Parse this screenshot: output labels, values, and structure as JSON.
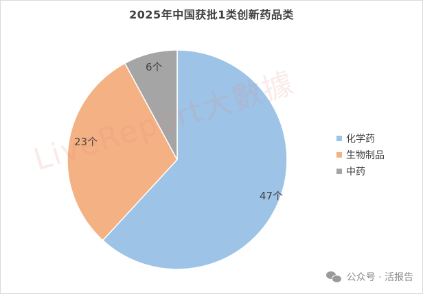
{
  "chart_data": {
    "type": "pie",
    "title": "2025年中国获批1类创新药品类",
    "categories": [
      "化学药",
      "生物制品",
      "中药"
    ],
    "values": [
      47,
      23,
      6
    ],
    "data_labels": [
      "47个",
      "23个",
      "6个"
    ],
    "colors": [
      "#9dc3e6",
      "#f4b183",
      "#a5a5a5"
    ],
    "start_angle": "12 o'clock, clockwise",
    "legend_position": "right"
  },
  "title": "2025年中国获批1类创新药品类",
  "legend": [
    {
      "label": "化学药",
      "color": "#9dc3e6"
    },
    {
      "label": "生物制品",
      "color": "#f4b183"
    },
    {
      "label": "中药",
      "color": "#a5a5a5"
    }
  ],
  "labels": {
    "chem": "47个",
    "bio": "23个",
    "tcm": "6个"
  },
  "watermark": "LiveReport大數據",
  "footer": {
    "text": "公众号 · 活报告"
  }
}
